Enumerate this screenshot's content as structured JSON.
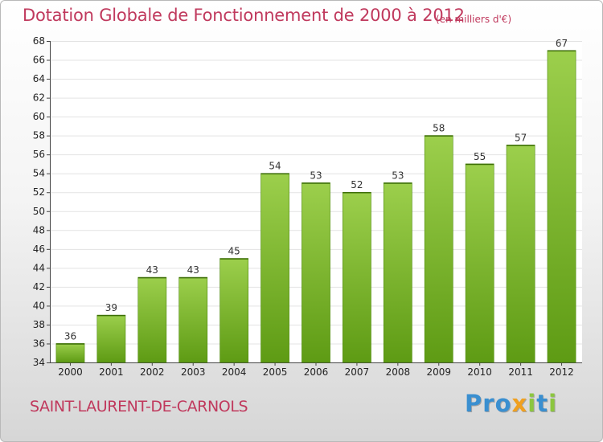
{
  "header": {
    "title": "Dotation Globale de Fonctionnement de 2000 à 2012",
    "unit": "(en milliers d'€)"
  },
  "footer": {
    "commune": "SAINT-LAURENT-DE-CARNOLS",
    "logo_letters": [
      {
        "char": "P",
        "color": "#3a8fd0"
      },
      {
        "char": "r",
        "color": "#3a8fd0"
      },
      {
        "char": "o",
        "color": "#3a8fd0"
      },
      {
        "char": "x",
        "color": "#f0a020"
      },
      {
        "char": "i",
        "color": "#8cc63f"
      },
      {
        "char": "t",
        "color": "#3a8fd0"
      },
      {
        "char": "i",
        "color": "#8cc63f"
      }
    ]
  },
  "colors": {
    "accent": "#c0395d",
    "bar_light": "#9ccf4c",
    "bar_dark": "#5e9b14"
  },
  "chart_data": {
    "type": "bar",
    "categories": [
      "2000",
      "2001",
      "2002",
      "2003",
      "2004",
      "2005",
      "2006",
      "2007",
      "2008",
      "2009",
      "2010",
      "2011",
      "2012"
    ],
    "values": [
      36,
      39,
      43,
      43,
      45,
      54,
      53,
      52,
      53,
      58,
      55,
      57,
      67
    ],
    "ylim": [
      34,
      68
    ],
    "yticks": [
      34,
      36,
      38,
      40,
      42,
      44,
      46,
      48,
      50,
      52,
      54,
      56,
      58,
      60,
      62,
      64,
      66,
      68
    ],
    "grid": true,
    "xlabel": "",
    "ylabel": ""
  }
}
